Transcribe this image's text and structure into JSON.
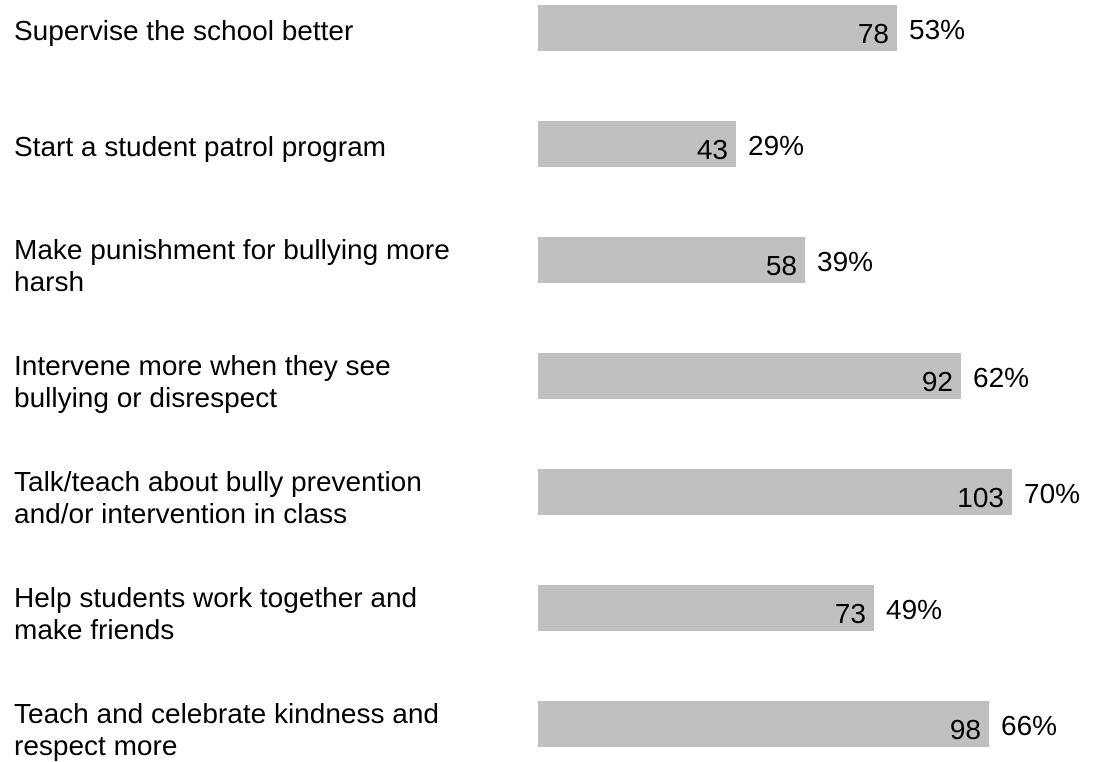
{
  "chart_data": {
    "type": "bar",
    "orientation": "horizontal",
    "categories": [
      "Supervise the school better",
      "Start a student patrol program",
      "Make punishment for bullying more harsh",
      "Intervene more when they see bullying or disrespect",
      "Talk/teach about bully prevention and/or intervention in class",
      "Help students work together and make friends",
      "Teach and celebrate kindness and respect more"
    ],
    "category_lines": [
      [
        "Supervise the school better"
      ],
      [
        "Start a student patrol program"
      ],
      [
        "Make punishment for bullying more",
        "harsh"
      ],
      [
        "Intervene more when they see",
        "bullying or disrespect"
      ],
      [
        "Talk/teach about bully prevention",
        "and/or intervention in class"
      ],
      [
        "Help students work together and",
        "make friends"
      ],
      [
        "Teach and celebrate kindness and",
        "respect more"
      ]
    ],
    "values": [
      78,
      43,
      58,
      92,
      103,
      73,
      98
    ],
    "percent_labels": [
      "53%",
      "29%",
      "39%",
      "62%",
      "70%",
      "49%",
      "66%"
    ],
    "bar_color": "#c0c0c0",
    "grid": false,
    "legend": "none"
  }
}
